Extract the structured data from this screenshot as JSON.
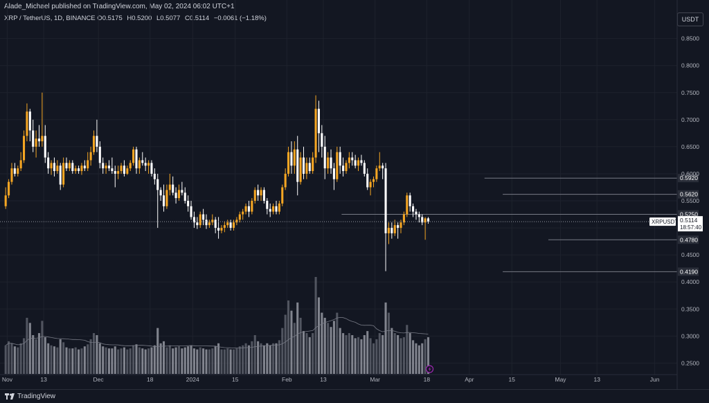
{
  "header": {
    "publish_line": "Alade_Michael published on TradingView.com, May 02, 2024 06:02 UTC+1",
    "symbol_line": "XRP / TetherUS, 1D, BINANCE",
    "ohlc": [
      {
        "key": "O",
        "value": "0.5175"
      },
      {
        "key": "H",
        "value": "0.5200"
      },
      {
        "key": "L",
        "value": "0.5077"
      },
      {
        "key": "C",
        "value": "0.5114"
      },
      {
        "key": "",
        "value": "−0.0061 (−1.18%)"
      }
    ],
    "currency_button": "USDT"
  },
  "footer": {
    "brand": "TradingView"
  },
  "colors": {
    "background": "#131722",
    "bull": "#f5a623",
    "bear": "#ffffff",
    "volume": "#787b86",
    "grid": "#1e222d",
    "level_line": "#787b86",
    "price_box_bg": "#ffffff",
    "price_box_text": "#131722"
  },
  "chart_data": {
    "type": "candlestick",
    "symbol": "XRPUSDT",
    "interval": "1D",
    "y_axis": {
      "ticks": [
        "0.8500",
        "0.8000",
        "0.7500",
        "0.7000",
        "0.6500",
        "0.6000",
        "0.5500",
        "0.5000",
        "0.4500",
        "0.4000",
        "0.3500",
        "0.3000",
        "0.2500"
      ],
      "ylim": [
        0.23,
        0.87
      ]
    },
    "x_axis": {
      "ticks": [
        "Nov",
        "13",
        "Dec",
        "18",
        "2024",
        "15",
        "Feb",
        "13",
        "Mar",
        "18",
        "Apr",
        "15",
        "May",
        "13",
        "Jun"
      ],
      "tick_dates": [
        "2023-11-01",
        "2023-11-13",
        "2023-12-01",
        "2023-12-18",
        "2024-01-01",
        "2024-01-15",
        "2024-02-01",
        "2024-02-13",
        "2024-03-01",
        "2024-03-18",
        "2024-04-01",
        "2024-04-15",
        "2024-05-01",
        "2024-05-13",
        "2024-06-01"
      ],
      "date_range": [
        "2023-10-31",
        "2024-06-07"
      ]
    },
    "candles_start_date": "2023-10-31",
    "candles": [
      [
        0.54,
        0.575,
        0.535,
        0.56
      ],
      [
        0.56,
        0.59,
        0.555,
        0.585
      ],
      [
        0.585,
        0.62,
        0.58,
        0.61
      ],
      [
        0.61,
        0.62,
        0.595,
        0.6
      ],
      [
        0.6,
        0.615,
        0.595,
        0.61
      ],
      [
        0.61,
        0.64,
        0.605,
        0.625
      ],
      [
        0.625,
        0.68,
        0.62,
        0.67
      ],
      [
        0.67,
        0.73,
        0.66,
        0.715
      ],
      [
        0.715,
        0.72,
        0.66,
        0.68
      ],
      [
        0.68,
        0.7,
        0.64,
        0.65
      ],
      [
        0.65,
        0.68,
        0.63,
        0.665
      ],
      [
        0.665,
        0.69,
        0.65,
        0.66
      ],
      [
        0.66,
        0.75,
        0.65,
        0.67
      ],
      [
        0.67,
        0.69,
        0.62,
        0.63
      ],
      [
        0.63,
        0.64,
        0.6,
        0.61
      ],
      [
        0.61,
        0.625,
        0.598,
        0.62
      ],
      [
        0.62,
        0.63,
        0.595,
        0.605
      ],
      [
        0.605,
        0.625,
        0.6,
        0.615
      ],
      [
        0.615,
        0.62,
        0.57,
        0.58
      ],
      [
        0.58,
        0.63,
        0.575,
        0.62
      ],
      [
        0.62,
        0.63,
        0.605,
        0.61
      ],
      [
        0.61,
        0.625,
        0.605,
        0.62
      ],
      [
        0.62,
        0.625,
        0.6,
        0.605
      ],
      [
        0.605,
        0.615,
        0.6,
        0.61
      ],
      [
        0.61,
        0.615,
        0.6,
        0.605
      ],
      [
        0.605,
        0.62,
        0.598,
        0.615
      ],
      [
        0.615,
        0.625,
        0.605,
        0.61
      ],
      [
        0.61,
        0.64,
        0.605,
        0.625
      ],
      [
        0.625,
        0.65,
        0.615,
        0.64
      ],
      [
        0.64,
        0.68,
        0.635,
        0.67
      ],
      [
        0.67,
        0.7,
        0.64,
        0.65
      ],
      [
        0.65,
        0.66,
        0.61,
        0.62
      ],
      [
        0.62,
        0.63,
        0.6,
        0.61
      ],
      [
        0.61,
        0.62,
        0.6,
        0.615
      ],
      [
        0.615,
        0.625,
        0.605,
        0.61
      ],
      [
        0.61,
        0.63,
        0.6,
        0.605
      ],
      [
        0.605,
        0.615,
        0.575,
        0.6
      ],
      [
        0.6,
        0.615,
        0.59,
        0.605
      ],
      [
        0.605,
        0.62,
        0.6,
        0.615
      ],
      [
        0.615,
        0.625,
        0.595,
        0.6
      ],
      [
        0.6,
        0.615,
        0.598,
        0.61
      ],
      [
        0.61,
        0.625,
        0.605,
        0.62
      ],
      [
        0.62,
        0.65,
        0.615,
        0.645
      ],
      [
        0.645,
        0.65,
        0.6,
        0.61
      ],
      [
        0.61,
        0.63,
        0.6,
        0.625
      ],
      [
        0.625,
        0.64,
        0.615,
        0.62
      ],
      [
        0.62,
        0.63,
        0.605,
        0.615
      ],
      [
        0.615,
        0.625,
        0.6,
        0.62
      ],
      [
        0.62,
        0.625,
        0.595,
        0.6
      ],
      [
        0.6,
        0.61,
        0.58,
        0.59
      ],
      [
        0.59,
        0.6,
        0.5,
        0.57
      ],
      [
        0.57,
        0.575,
        0.55,
        0.56
      ],
      [
        0.56,
        0.58,
        0.53,
        0.54
      ],
      [
        0.54,
        0.58,
        0.535,
        0.57
      ],
      [
        0.57,
        0.6,
        0.56,
        0.58
      ],
      [
        0.58,
        0.595,
        0.56,
        0.565
      ],
      [
        0.565,
        0.575,
        0.545,
        0.555
      ],
      [
        0.555,
        0.58,
        0.55,
        0.57
      ],
      [
        0.57,
        0.585,
        0.56,
        0.565
      ],
      [
        0.565,
        0.575,
        0.545,
        0.55
      ],
      [
        0.55,
        0.56,
        0.53,
        0.54
      ],
      [
        0.54,
        0.55,
        0.515,
        0.52
      ],
      [
        0.52,
        0.53,
        0.5,
        0.51
      ],
      [
        0.51,
        0.52,
        0.498,
        0.505
      ],
      [
        0.505,
        0.53,
        0.5,
        0.525
      ],
      [
        0.525,
        0.535,
        0.505,
        0.515
      ],
      [
        0.515,
        0.525,
        0.498,
        0.505
      ],
      [
        0.505,
        0.515,
        0.5,
        0.51
      ],
      [
        0.51,
        0.525,
        0.505,
        0.515
      ],
      [
        0.515,
        0.52,
        0.49,
        0.5
      ],
      [
        0.5,
        0.52,
        0.48,
        0.495
      ],
      [
        0.495,
        0.505,
        0.49,
        0.5
      ],
      [
        0.5,
        0.512,
        0.492,
        0.505
      ],
      [
        0.505,
        0.515,
        0.5,
        0.51
      ],
      [
        0.51,
        0.515,
        0.495,
        0.5
      ],
      [
        0.5,
        0.515,
        0.495,
        0.51
      ],
      [
        0.51,
        0.52,
        0.505,
        0.515
      ],
      [
        0.515,
        0.53,
        0.51,
        0.525
      ],
      [
        0.525,
        0.535,
        0.515,
        0.53
      ],
      [
        0.53,
        0.545,
        0.525,
        0.54
      ],
      [
        0.54,
        0.55,
        0.52,
        0.53
      ],
      [
        0.53,
        0.555,
        0.525,
        0.55
      ],
      [
        0.55,
        0.575,
        0.545,
        0.57
      ],
      [
        0.57,
        0.58,
        0.55,
        0.56
      ],
      [
        0.56,
        0.575,
        0.55,
        0.57
      ],
      [
        0.57,
        0.575,
        0.545,
        0.55
      ],
      [
        0.55,
        0.555,
        0.525,
        0.535
      ],
      [
        0.535,
        0.545,
        0.52,
        0.53
      ],
      [
        0.53,
        0.545,
        0.525,
        0.54
      ],
      [
        0.54,
        0.55,
        0.525,
        0.53
      ],
      [
        0.53,
        0.55,
        0.525,
        0.545
      ],
      [
        0.545,
        0.58,
        0.54,
        0.575
      ],
      [
        0.575,
        0.61,
        0.57,
        0.6
      ],
      [
        0.6,
        0.65,
        0.595,
        0.64
      ],
      [
        0.64,
        0.66,
        0.6,
        0.615
      ],
      [
        0.615,
        0.66,
        0.6,
        0.645
      ],
      [
        0.645,
        0.67,
        0.56,
        0.585
      ],
      [
        0.585,
        0.64,
        0.58,
        0.63
      ],
      [
        0.63,
        0.65,
        0.59,
        0.6
      ],
      [
        0.6,
        0.63,
        0.59,
        0.62
      ],
      [
        0.62,
        0.63,
        0.6,
        0.605
      ],
      [
        0.605,
        0.64,
        0.6,
        0.63
      ],
      [
        0.63,
        0.745,
        0.62,
        0.72
      ],
      [
        0.72,
        0.735,
        0.64,
        0.675
      ],
      [
        0.675,
        0.69,
        0.63,
        0.65
      ],
      [
        0.65,
        0.67,
        0.59,
        0.61
      ],
      [
        0.61,
        0.64,
        0.6,
        0.63
      ],
      [
        0.63,
        0.645,
        0.6,
        0.61
      ],
      [
        0.61,
        0.62,
        0.57,
        0.59
      ],
      [
        0.59,
        0.65,
        0.585,
        0.64
      ],
      [
        0.64,
        0.65,
        0.6,
        0.615
      ],
      [
        0.615,
        0.63,
        0.595,
        0.605
      ],
      [
        0.605,
        0.625,
        0.6,
        0.62
      ],
      [
        0.62,
        0.64,
        0.61,
        0.63
      ],
      [
        0.63,
        0.64,
        0.615,
        0.625
      ],
      [
        0.625,
        0.635,
        0.61,
        0.615
      ],
      [
        0.615,
        0.63,
        0.605,
        0.625
      ],
      [
        0.625,
        0.635,
        0.615,
        0.62
      ],
      [
        0.62,
        0.625,
        0.595,
        0.6
      ],
      [
        0.6,
        0.61,
        0.57,
        0.575
      ],
      [
        0.575,
        0.59,
        0.56,
        0.585
      ],
      [
        0.585,
        0.595,
        0.575,
        0.59
      ],
      [
        0.59,
        0.615,
        0.585,
        0.61
      ],
      [
        0.61,
        0.64,
        0.605,
        0.615
      ],
      [
        0.615,
        0.62,
        0.59,
        0.61
      ],
      [
        0.61,
        0.62,
        0.42,
        0.49
      ],
      [
        0.49,
        0.51,
        0.47,
        0.5
      ],
      [
        0.5,
        0.51,
        0.48,
        0.49
      ],
      [
        0.49,
        0.515,
        0.485,
        0.505
      ],
      [
        0.505,
        0.51,
        0.48,
        0.5
      ],
      [
        0.5,
        0.515,
        0.49,
        0.51
      ],
      [
        0.51,
        0.53,
        0.505,
        0.525
      ],
      [
        0.525,
        0.565,
        0.52,
        0.56
      ],
      [
        0.56,
        0.565,
        0.53,
        0.54
      ],
      [
        0.54,
        0.545,
        0.52,
        0.53
      ],
      [
        0.53,
        0.535,
        0.515,
        0.525
      ],
      [
        0.525,
        0.53,
        0.51,
        0.52
      ],
      [
        0.52,
        0.525,
        0.505,
        0.51
      ],
      [
        0.51,
        0.52,
        0.478,
        0.5175
      ],
      [
        0.5175,
        0.52,
        0.5077,
        0.5114
      ]
    ],
    "volume": [
      0.28,
      0.32,
      0.3,
      0.27,
      0.26,
      0.3,
      0.35,
      0.55,
      0.5,
      0.38,
      0.34,
      0.4,
      0.52,
      0.36,
      0.3,
      0.28,
      0.27,
      0.26,
      0.34,
      0.31,
      0.26,
      0.25,
      0.25,
      0.26,
      0.24,
      0.25,
      0.27,
      0.29,
      0.34,
      0.4,
      0.38,
      0.3,
      0.27,
      0.26,
      0.25,
      0.25,
      0.27,
      0.24,
      0.25,
      0.26,
      0.24,
      0.25,
      0.28,
      0.29,
      0.26,
      0.25,
      0.24,
      0.25,
      0.26,
      0.28,
      0.45,
      0.3,
      0.32,
      0.26,
      0.28,
      0.25,
      0.26,
      0.27,
      0.25,
      0.26,
      0.27,
      0.28,
      0.25,
      0.24,
      0.26,
      0.25,
      0.24,
      0.24,
      0.25,
      0.27,
      0.3,
      0.24,
      0.24,
      0.25,
      0.24,
      0.24,
      0.25,
      0.27,
      0.28,
      0.3,
      0.28,
      0.32,
      0.38,
      0.32,
      0.3,
      0.28,
      0.3,
      0.28,
      0.3,
      0.3,
      0.33,
      0.45,
      0.58,
      0.72,
      0.62,
      0.5,
      0.7,
      0.55,
      0.42,
      0.4,
      0.36,
      0.4,
      0.95,
      0.75,
      0.6,
      0.55,
      0.5,
      0.46,
      0.52,
      0.6,
      0.45,
      0.4,
      0.38,
      0.4,
      0.38,
      0.35,
      0.36,
      0.34,
      0.38,
      0.42,
      0.35,
      0.3,
      0.34,
      0.4,
      0.38,
      0.7,
      0.6,
      0.45,
      0.4,
      0.38,
      0.35,
      0.36,
      0.48,
      0.4,
      0.33,
      0.3,
      0.28,
      0.3,
      0.34,
      0.36
    ],
    "volume_scale_note": "relative",
    "volume_ma_color": "#787b86",
    "horizontal_levels": [
      {
        "price": 0.592,
        "label": "0.5920",
        "start_date": "2024-04-06"
      },
      {
        "price": 0.562,
        "label": "0.5620",
        "start_date": "2024-04-12"
      },
      {
        "price": 0.525,
        "label": "0.5250",
        "start_date": "2024-02-19"
      },
      {
        "price": 0.478,
        "label": "0.4780",
        "start_date": "2024-04-27"
      },
      {
        "price": 0.419,
        "label": "0.4190",
        "start_date": "2024-04-12"
      }
    ],
    "current_price": {
      "symbol": "XRPUSDT",
      "price": "0.5114",
      "countdown": "18:57:40",
      "value": 0.5114
    }
  }
}
